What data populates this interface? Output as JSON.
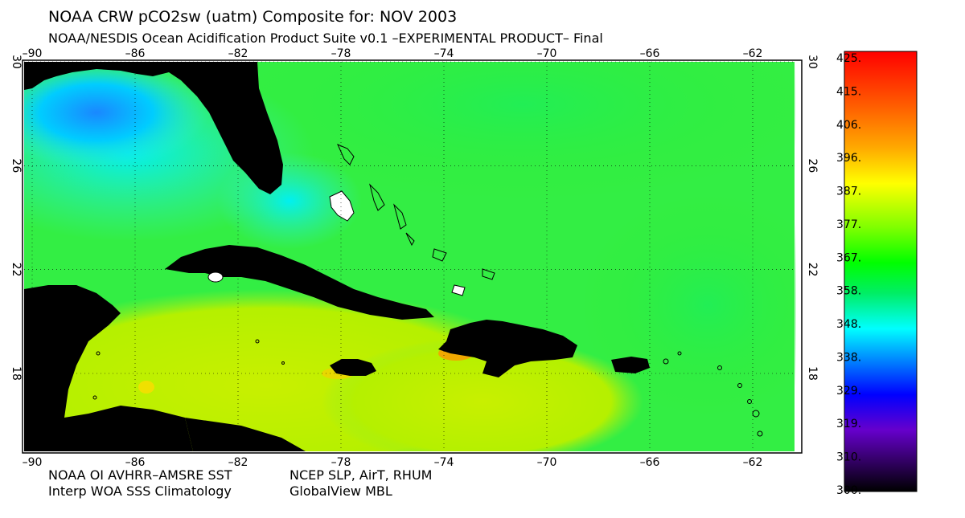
{
  "title": "NOAA CRW pCO2sw (uatm) Composite for: NOV 2003",
  "subtitle": "NOAA/NESDIS Ocean Acidification Product Suite  v0.1 –EXPERIMENTAL PRODUCT–    Final",
  "footer": {
    "line1_left": "NOAA OI AVHRR–AMSRE SST",
    "line1_right": "NCEP SLP, AirT, RHUM",
    "line2_left": "Interp WOA SSS Climatology",
    "line2_right": "GlobalView MBL"
  },
  "map": {
    "lon_range": [
      -90,
      -60
    ],
    "lat_range": [
      15,
      30
    ],
    "lon_ticks": [
      "–90",
      "–86",
      "–82",
      "–78",
      "–74",
      "–70",
      "–66",
      "–62"
    ],
    "lat_ticks": [
      "30",
      "26",
      "22",
      "18"
    ],
    "grid": true,
    "ocean_color_base": "#33ee33"
  },
  "colorbar": {
    "labels": [
      "425.",
      "415.",
      "406.",
      "396.",
      "387.",
      "377.",
      "367.",
      "358.",
      "348.",
      "338.",
      "329.",
      "319.",
      "310.",
      "300."
    ],
    "min": 300,
    "max": 425
  }
}
